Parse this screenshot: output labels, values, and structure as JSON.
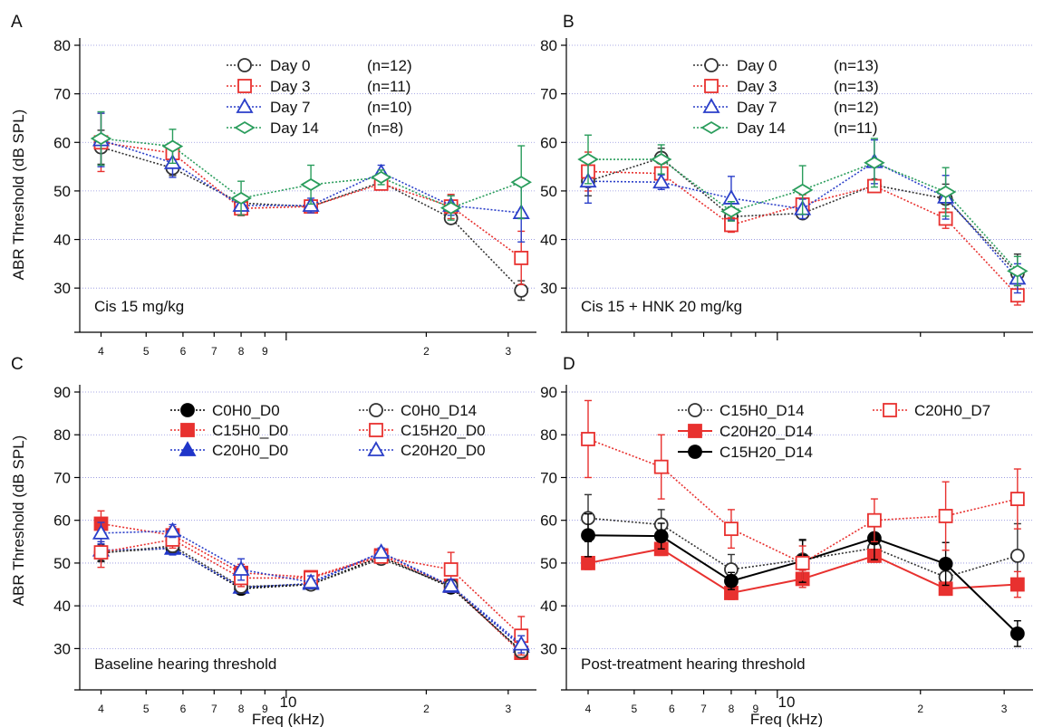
{
  "figure": {
    "xlabel": "Freq (kHz)",
    "x_decade_label": "10",
    "ylabel": "ABR Threshold (dB SPL)"
  },
  "chart_data": [
    {
      "panel": "A",
      "type": "line",
      "annotation": "Cis 15 mg/kg",
      "xscale": "log",
      "xlim": [
        3.6,
        34.5
      ],
      "x_tick_labels": [
        [
          "4",
          4
        ],
        [
          "5",
          5
        ],
        [
          "6",
          6
        ],
        [
          "7",
          7
        ],
        [
          "8",
          8
        ],
        [
          "9",
          9
        ],
        [
          "2",
          20
        ],
        [
          "3",
          30
        ]
      ],
      "ylim": [
        25,
        80
      ],
      "y_ticks": [
        30,
        40,
        50,
        60,
        70,
        80
      ],
      "grid": true,
      "legend_position": "top-center",
      "series": [
        {
          "name": "Day 0",
          "n_label": "(n=12)",
          "color": "#333333",
          "marker": "circle",
          "filled": false,
          "dash": "dotted",
          "x": [
            4,
            5.7,
            8,
            11.3,
            16,
            22.6,
            32
          ],
          "y": [
            59,
            54.7,
            47.5,
            46.8,
            51.8,
            44.4,
            29.5
          ],
          "err": [
            3.5,
            1.5,
            1.5,
            1,
            1.5,
            1,
            2
          ]
        },
        {
          "name": "Day 3",
          "n_label": "(n=11)",
          "color": "#e8312f",
          "marker": "square",
          "filled": false,
          "dash": "dotted",
          "x": [
            4,
            5.7,
            8,
            11.3,
            16,
            22.6,
            32
          ],
          "y": [
            60,
            57.8,
            46.4,
            46.8,
            51.5,
            46.8,
            36.2
          ],
          "err": [
            6,
            2,
            1.5,
            1,
            1,
            2.5,
            5.5
          ]
        },
        {
          "name": "Day 7",
          "n_label": "(n=10)",
          "color": "#2b3fc9",
          "marker": "triangle",
          "filled": false,
          "dash": "dotted",
          "x": [
            4,
            5.7,
            8,
            11.3,
            16,
            22.6,
            32
          ],
          "y": [
            60.5,
            55.8,
            47,
            47,
            53.8,
            47,
            45.5
          ],
          "err": [
            5.5,
            3,
            2,
            1.5,
            1.5,
            2,
            6
          ]
        },
        {
          "name": "Day 14",
          "n_label": "(n=8)",
          "color": "#2a9d5c",
          "marker": "diamond",
          "filled": false,
          "dash": "dotted",
          "x": [
            4,
            5.7,
            8,
            11.3,
            16,
            22.6,
            32
          ],
          "y": [
            60.8,
            59.2,
            48.5,
            51.3,
            52.8,
            46.5,
            51.8
          ],
          "err": [
            5.5,
            3.5,
            3.5,
            4,
            1.5,
            2.5,
            7.5
          ]
        }
      ]
    },
    {
      "panel": "B",
      "type": "line",
      "annotation": "Cis 15 + HNK 20 mg/kg",
      "xscale": "log",
      "xlim": [
        3.6,
        34.5
      ],
      "x_tick_labels": [],
      "ylim": [
        25,
        80
      ],
      "y_ticks": [
        30,
        40,
        50,
        60,
        70,
        80
      ],
      "grid": true,
      "legend_position": "top-center",
      "series": [
        {
          "name": "Day 0",
          "n_label": "(n=13)",
          "color": "#333333",
          "marker": "circle",
          "filled": false,
          "dash": "dotted",
          "x": [
            4,
            5.7,
            8,
            11.3,
            16,
            22.6,
            32
          ],
          "y": [
            52,
            56.8,
            44.7,
            45.4,
            51.2,
            48.4,
            33
          ],
          "err": [
            3,
            2,
            2,
            1,
            1,
            3,
            4
          ]
        },
        {
          "name": "Day 3",
          "n_label": "(n=13)",
          "color": "#e8312f",
          "marker": "square",
          "filled": false,
          "dash": "dotted",
          "x": [
            4,
            5.7,
            8,
            11.3,
            16,
            22.6,
            32
          ],
          "y": [
            54,
            53.6,
            43,
            47.2,
            51,
            44.3,
            28.5
          ],
          "err": [
            4,
            2,
            1.5,
            2,
            1,
            2,
            2
          ]
        },
        {
          "name": "Day 7",
          "n_label": "(n=12)",
          "color": "#2b3fc9",
          "marker": "triangle",
          "filled": false,
          "dash": "dotted",
          "x": [
            4,
            5.7,
            8,
            11.3,
            16,
            22.6,
            32
          ],
          "y": [
            52,
            51.8,
            48.5,
            46.3,
            56,
            48.7,
            32
          ],
          "err": [
            4.5,
            1.5,
            4.5,
            2,
            4.5,
            4.5,
            3
          ]
        },
        {
          "name": "Day 14",
          "n_label": "(n=11)",
          "color": "#2a9d5c",
          "marker": "diamond",
          "filled": false,
          "dash": "dotted",
          "x": [
            4,
            5.7,
            8,
            11.3,
            16,
            22.6,
            32
          ],
          "y": [
            56.5,
            56.5,
            45.8,
            50.2,
            55.8,
            49.8,
            33.5
          ],
          "err": [
            5,
            3,
            2,
            5,
            5,
            5,
            3
          ]
        }
      ]
    },
    {
      "panel": "C",
      "type": "line",
      "annotation": "Baseline hearing threshold",
      "xscale": "log",
      "xlim": [
        3.6,
        34.5
      ],
      "x_tick_labels": [
        [
          "4",
          4
        ],
        [
          "5",
          5
        ],
        [
          "6",
          6
        ],
        [
          "7",
          7
        ],
        [
          "8",
          8
        ],
        [
          "9",
          9
        ],
        [
          "2",
          20
        ],
        [
          "3",
          30
        ]
      ],
      "ylim": [
        25,
        90
      ],
      "y_ticks": [
        30,
        40,
        50,
        60,
        70,
        80,
        90
      ],
      "grid": true,
      "legend_position": "top-right",
      "series": [
        {
          "name": "C0H0_D0",
          "color": "#000000",
          "marker": "circle",
          "filled": true,
          "dash": "dotted",
          "x": [
            4,
            5.7,
            8,
            11.3,
            16,
            22.6,
            32
          ],
          "y": [
            52.5,
            53.5,
            44,
            45,
            51.5,
            44.3,
            29.5
          ],
          "err": [
            2,
            1.5,
            1,
            1,
            1,
            1,
            1
          ]
        },
        {
          "name": "C15H0_D0",
          "color": "#e8312f",
          "marker": "square",
          "filled": true,
          "dash": "dotted",
          "x": [
            4,
            5.7,
            8,
            11.3,
            16,
            22.6,
            32
          ],
          "y": [
            59.2,
            56.5,
            47.7,
            46.7,
            51.8,
            44.7,
            29
          ],
          "err": [
            3,
            2,
            2,
            1,
            1,
            1,
            1
          ]
        },
        {
          "name": "C20H0_D0",
          "color": "#1f35c9",
          "marker": "triangle",
          "filled": true,
          "dash": "dotted",
          "x": [
            4,
            5.7,
            8,
            11.3,
            16,
            22.6,
            32
          ],
          "y": [
            53,
            53.4,
            44.3,
            45.2,
            52.5,
            44.5,
            30.5
          ],
          "err": [
            2,
            1.5,
            1,
            1,
            1,
            1,
            1.5
          ]
        },
        {
          "name": "C0H0_D14",
          "color": "#333333",
          "marker": "circle",
          "filled": false,
          "dash": "dotted",
          "x": [
            4,
            5.7,
            8,
            11.3,
            16,
            22.6,
            32
          ],
          "y": [
            52.3,
            54,
            44.5,
            45,
            51,
            44.7,
            29.3
          ],
          "err": [
            2,
            1.5,
            1,
            1,
            1,
            1,
            1
          ]
        },
        {
          "name": "C15H20_D0",
          "color": "#e8312f",
          "marker": "square",
          "filled": false,
          "dash": "dotted",
          "x": [
            4,
            5.7,
            8,
            11.3,
            16,
            22.6,
            32
          ],
          "y": [
            52.5,
            55.5,
            46.5,
            46.5,
            51.5,
            48.5,
            33
          ],
          "err": [
            3.5,
            2,
            2,
            1.5,
            1,
            4,
            4.5
          ]
        },
        {
          "name": "C20H20_D0",
          "color": "#2b3fc9",
          "marker": "triangle",
          "filled": false,
          "dash": "dotted",
          "x": [
            4,
            5.7,
            8,
            11.3,
            16,
            22.6,
            32
          ],
          "y": [
            57,
            57.5,
            48.5,
            45.5,
            52.5,
            44.7,
            31
          ],
          "err": [
            2.5,
            1.5,
            2.5,
            1.5,
            1,
            1.5,
            2
          ]
        }
      ]
    },
    {
      "panel": "D",
      "type": "line",
      "annotation": "Post-treatment hearing threshold",
      "xscale": "log",
      "xlim": [
        3.6,
        34.5
      ],
      "x_tick_labels": [
        [
          "4",
          4
        ],
        [
          "5",
          5
        ],
        [
          "6",
          6
        ],
        [
          "7",
          7
        ],
        [
          "8",
          8
        ],
        [
          "9",
          9
        ],
        [
          "2",
          20
        ],
        [
          "3",
          30
        ]
      ],
      "ylim": [
        25,
        90
      ],
      "y_ticks": [
        30,
        40,
        50,
        60,
        70,
        80,
        90
      ],
      "grid": true,
      "legend_position": "top-right",
      "series": [
        {
          "name": "C15H0_D14",
          "color": "#333333",
          "marker": "circle",
          "filled": false,
          "dash": "dotted",
          "x": [
            4,
            5.7,
            8,
            11.3,
            16,
            22.6,
            32
          ],
          "y": [
            60.5,
            59,
            48.5,
            50.8,
            53.5,
            46.7,
            51.7
          ],
          "err": [
            5.5,
            3.5,
            3.5,
            4.5,
            3,
            2.5,
            7.5
          ]
        },
        {
          "name": "C20H20_D14",
          "color": "#e8312f",
          "marker": "square",
          "filled": true,
          "dash": "solid",
          "x": [
            4,
            5.7,
            8,
            11.3,
            16,
            22.6,
            32
          ],
          "y": [
            50,
            53.3,
            43,
            46.3,
            51.7,
            44,
            45
          ],
          "err": [
            1.5,
            1.5,
            1.5,
            2,
            1.5,
            1.5,
            3
          ]
        },
        {
          "name": "C15H20_D14",
          "color": "#000000",
          "marker": "circle",
          "filled": true,
          "dash": "solid",
          "x": [
            4,
            5.7,
            8,
            11.3,
            16,
            22.6,
            32
          ],
          "y": [
            56.5,
            56.3,
            45.8,
            50.5,
            55.8,
            49.8,
            33.5
          ],
          "err": [
            5,
            3,
            2,
            5,
            5,
            5,
            3
          ]
        },
        {
          "name": "C20H0_D7",
          "color": "#e8312f",
          "marker": "square",
          "filled": false,
          "dash": "dotted",
          "x": [
            4,
            5.7,
            8,
            11.3,
            16,
            22.6,
            32
          ],
          "y": [
            79,
            72.5,
            58,
            50,
            60,
            61,
            65
          ],
          "err": [
            9,
            7.5,
            4.5,
            4,
            5,
            8,
            7
          ]
        }
      ]
    }
  ]
}
